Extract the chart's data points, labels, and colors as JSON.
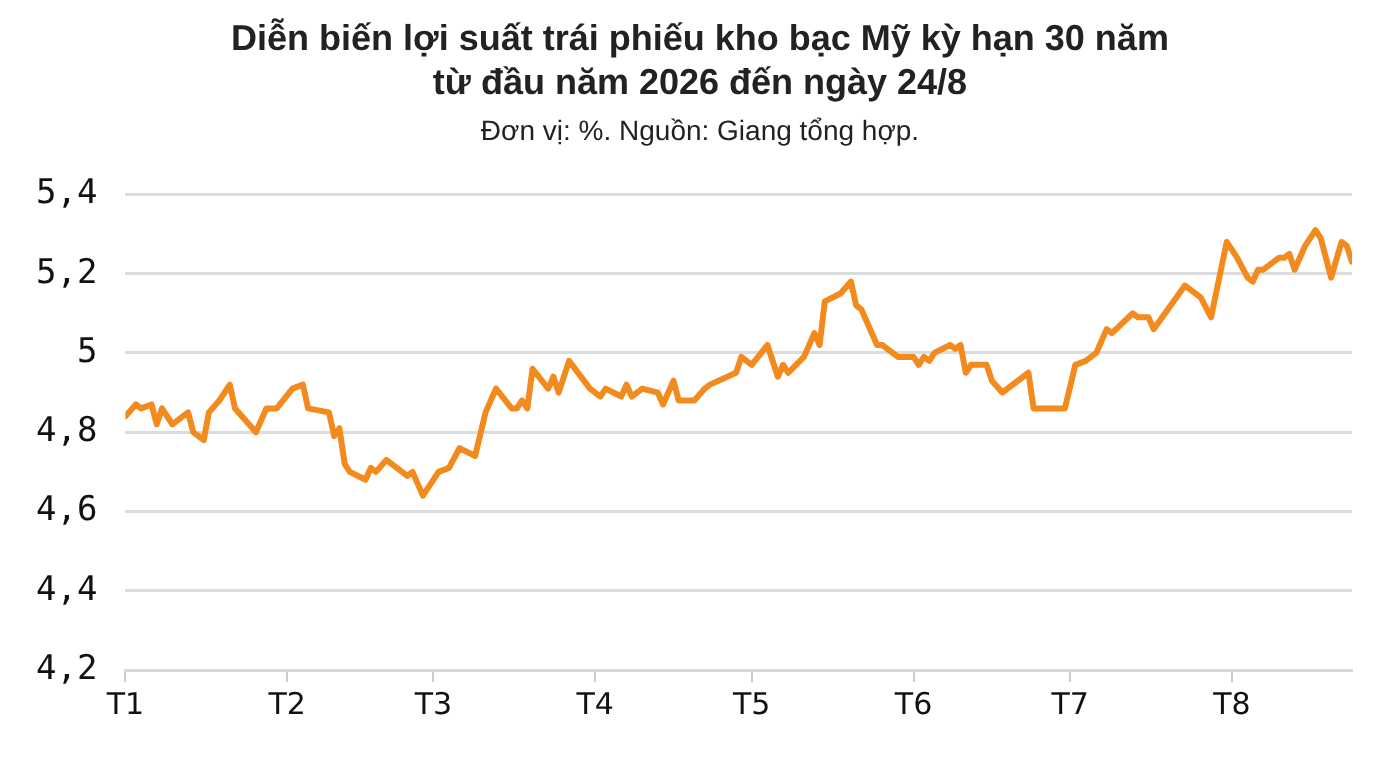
{
  "chart_data": {
    "type": "line",
    "title": "Diễn biến lợi suất trái phiếu kho bạc Mỹ kỳ hạn 30 năm từ đầu năm 2026 đến ngày 24/8",
    "subtitle": "Đơn vị: %. Nguồn: Giang tổng hợp.",
    "x": [
      "2026-01-01",
      "2026-01-03",
      "2026-01-04",
      "2026-01-06",
      "2026-01-07",
      "2026-01-08",
      "2026-01-10",
      "2026-01-13",
      "2026-01-14",
      "2026-01-16",
      "2026-01-17",
      "2026-01-19",
      "2026-01-21",
      "2026-01-22",
      "2026-01-24",
      "2026-01-26",
      "2026-01-28",
      "2026-01-30",
      "2026-02-02",
      "2026-02-04",
      "2026-02-05",
      "2026-02-09",
      "2026-02-10",
      "2026-02-11",
      "2026-02-12",
      "2026-02-13",
      "2026-02-16",
      "2026-02-17",
      "2026-02-18",
      "2026-02-20",
      "2026-02-24",
      "2026-02-25",
      "2026-02-27",
      "2026-03-02",
      "2026-03-04",
      "2026-03-06",
      "2026-03-09",
      "2026-03-11",
      "2026-03-13",
      "2026-03-16",
      "2026-03-17",
      "2026-03-18",
      "2026-03-19",
      "2026-03-20",
      "2026-03-23",
      "2026-03-24",
      "2026-03-25",
      "2026-03-27",
      "2026-03-31",
      "2026-04-01",
      "2026-04-02",
      "2026-04-03",
      "2026-04-06",
      "2026-04-07",
      "2026-04-08",
      "2026-04-10",
      "2026-04-13",
      "2026-04-14",
      "2026-04-16",
      "2026-04-17",
      "2026-04-20",
      "2026-04-22",
      "2026-04-23",
      "2026-04-28",
      "2026-04-29",
      "2026-05-01",
      "2026-05-04",
      "2026-05-06",
      "2026-05-07",
      "2026-05-08",
      "2026-05-11",
      "2026-05-13",
      "2026-05-14",
      "2026-05-15",
      "2026-05-18",
      "2026-05-20",
      "2026-05-21",
      "2026-05-22",
      "2026-05-25",
      "2026-05-26",
      "2026-05-29",
      "2026-06-01",
      "2026-06-02",
      "2026-06-03",
      "2026-06-04",
      "2026-06-05",
      "2026-06-08",
      "2026-06-09",
      "2026-06-10",
      "2026-06-11",
      "2026-06-12",
      "2026-06-15",
      "2026-06-16",
      "2026-06-18",
      "2026-06-23",
      "2026-06-24",
      "2026-06-26",
      "2026-06-30",
      "2026-07-02",
      "2026-07-04",
      "2026-07-06",
      "2026-07-08",
      "2026-07-09",
      "2026-07-13",
      "2026-07-14",
      "2026-07-16",
      "2026-07-17",
      "2026-07-23",
      "2026-07-26",
      "2026-07-28",
      "2026-07-31",
      "2026-08-02",
      "2026-08-04",
      "2026-08-05",
      "2026-08-06",
      "2026-08-07",
      "2026-08-10",
      "2026-08-11",
      "2026-08-12",
      "2026-08-13",
      "2026-08-15",
      "2026-08-17",
      "2026-08-18",
      "2026-08-20",
      "2026-08-22",
      "2026-08-23",
      "2026-08-24"
    ],
    "series": [
      {
        "color": "#f28a1e",
        "values": [
          4.84,
          4.87,
          4.86,
          4.87,
          4.82,
          4.86,
          4.82,
          4.85,
          4.8,
          4.78,
          4.85,
          4.88,
          4.92,
          4.86,
          4.83,
          4.8,
          4.86,
          4.86,
          4.91,
          4.92,
          4.86,
          4.85,
          4.79,
          4.81,
          4.72,
          4.7,
          4.68,
          4.71,
          4.7,
          4.73,
          4.69,
          4.7,
          4.64,
          4.7,
          4.71,
          4.76,
          4.74,
          4.85,
          4.91,
          4.86,
          4.86,
          4.88,
          4.86,
          4.96,
          4.91,
          4.94,
          4.9,
          4.98,
          4.91,
          4.9,
          4.89,
          4.91,
          4.89,
          4.92,
          4.89,
          4.91,
          4.9,
          4.87,
          4.93,
          4.88,
          4.88,
          4.91,
          4.92,
          4.95,
          4.99,
          4.97,
          5.02,
          4.94,
          4.97,
          4.95,
          4.99,
          5.05,
          5.02,
          5.13,
          5.15,
          5.18,
          5.12,
          5.11,
          5.02,
          5.02,
          4.99,
          4.99,
          4.97,
          4.99,
          4.98,
          5.0,
          5.02,
          5.01,
          5.02,
          4.95,
          4.97,
          4.97,
          4.93,
          4.9,
          4.95,
          4.86,
          4.86,
          4.86,
          4.97,
          4.98,
          5.0,
          5.06,
          5.05,
          5.1,
          5.09,
          5.09,
          5.06,
          5.17,
          5.14,
          5.09,
          5.28,
          5.24,
          5.19,
          5.18,
          5.21,
          5.21,
          5.24,
          5.24,
          5.25,
          5.21,
          5.27,
          5.31,
          5.29,
          5.19,
          5.28,
          5.27,
          5.23
        ]
      }
    ],
    "xlim": [
      "2026-01-01",
      "2026-08-24"
    ],
    "xticks": [
      {
        "value": "2026-01-01",
        "label": "T1"
      },
      {
        "value": "2026-02-01",
        "label": "T2"
      },
      {
        "value": "2026-03-01",
        "label": "T3"
      },
      {
        "value": "2026-04-01",
        "label": "T4"
      },
      {
        "value": "2026-05-01",
        "label": "T5"
      },
      {
        "value": "2026-06-01",
        "label": "T6"
      },
      {
        "value": "2026-07-01",
        "label": "T7"
      },
      {
        "value": "2026-08-01",
        "label": "T8"
      }
    ],
    "ylim": [
      4.2,
      5.4
    ],
    "yticks": [
      {
        "value": 4.2,
        "label": "4,2"
      },
      {
        "value": 4.4,
        "label": "4,4"
      },
      {
        "value": 4.6,
        "label": "4,6"
      },
      {
        "value": 4.8,
        "label": "4,8"
      },
      5,
      {
        "value": 5.2,
        "label": "5,2"
      },
      {
        "value": 5.4,
        "label": "5,4"
      }
    ],
    "grid": "y",
    "legend": false,
    "marker": "none",
    "line_style": "solid"
  }
}
